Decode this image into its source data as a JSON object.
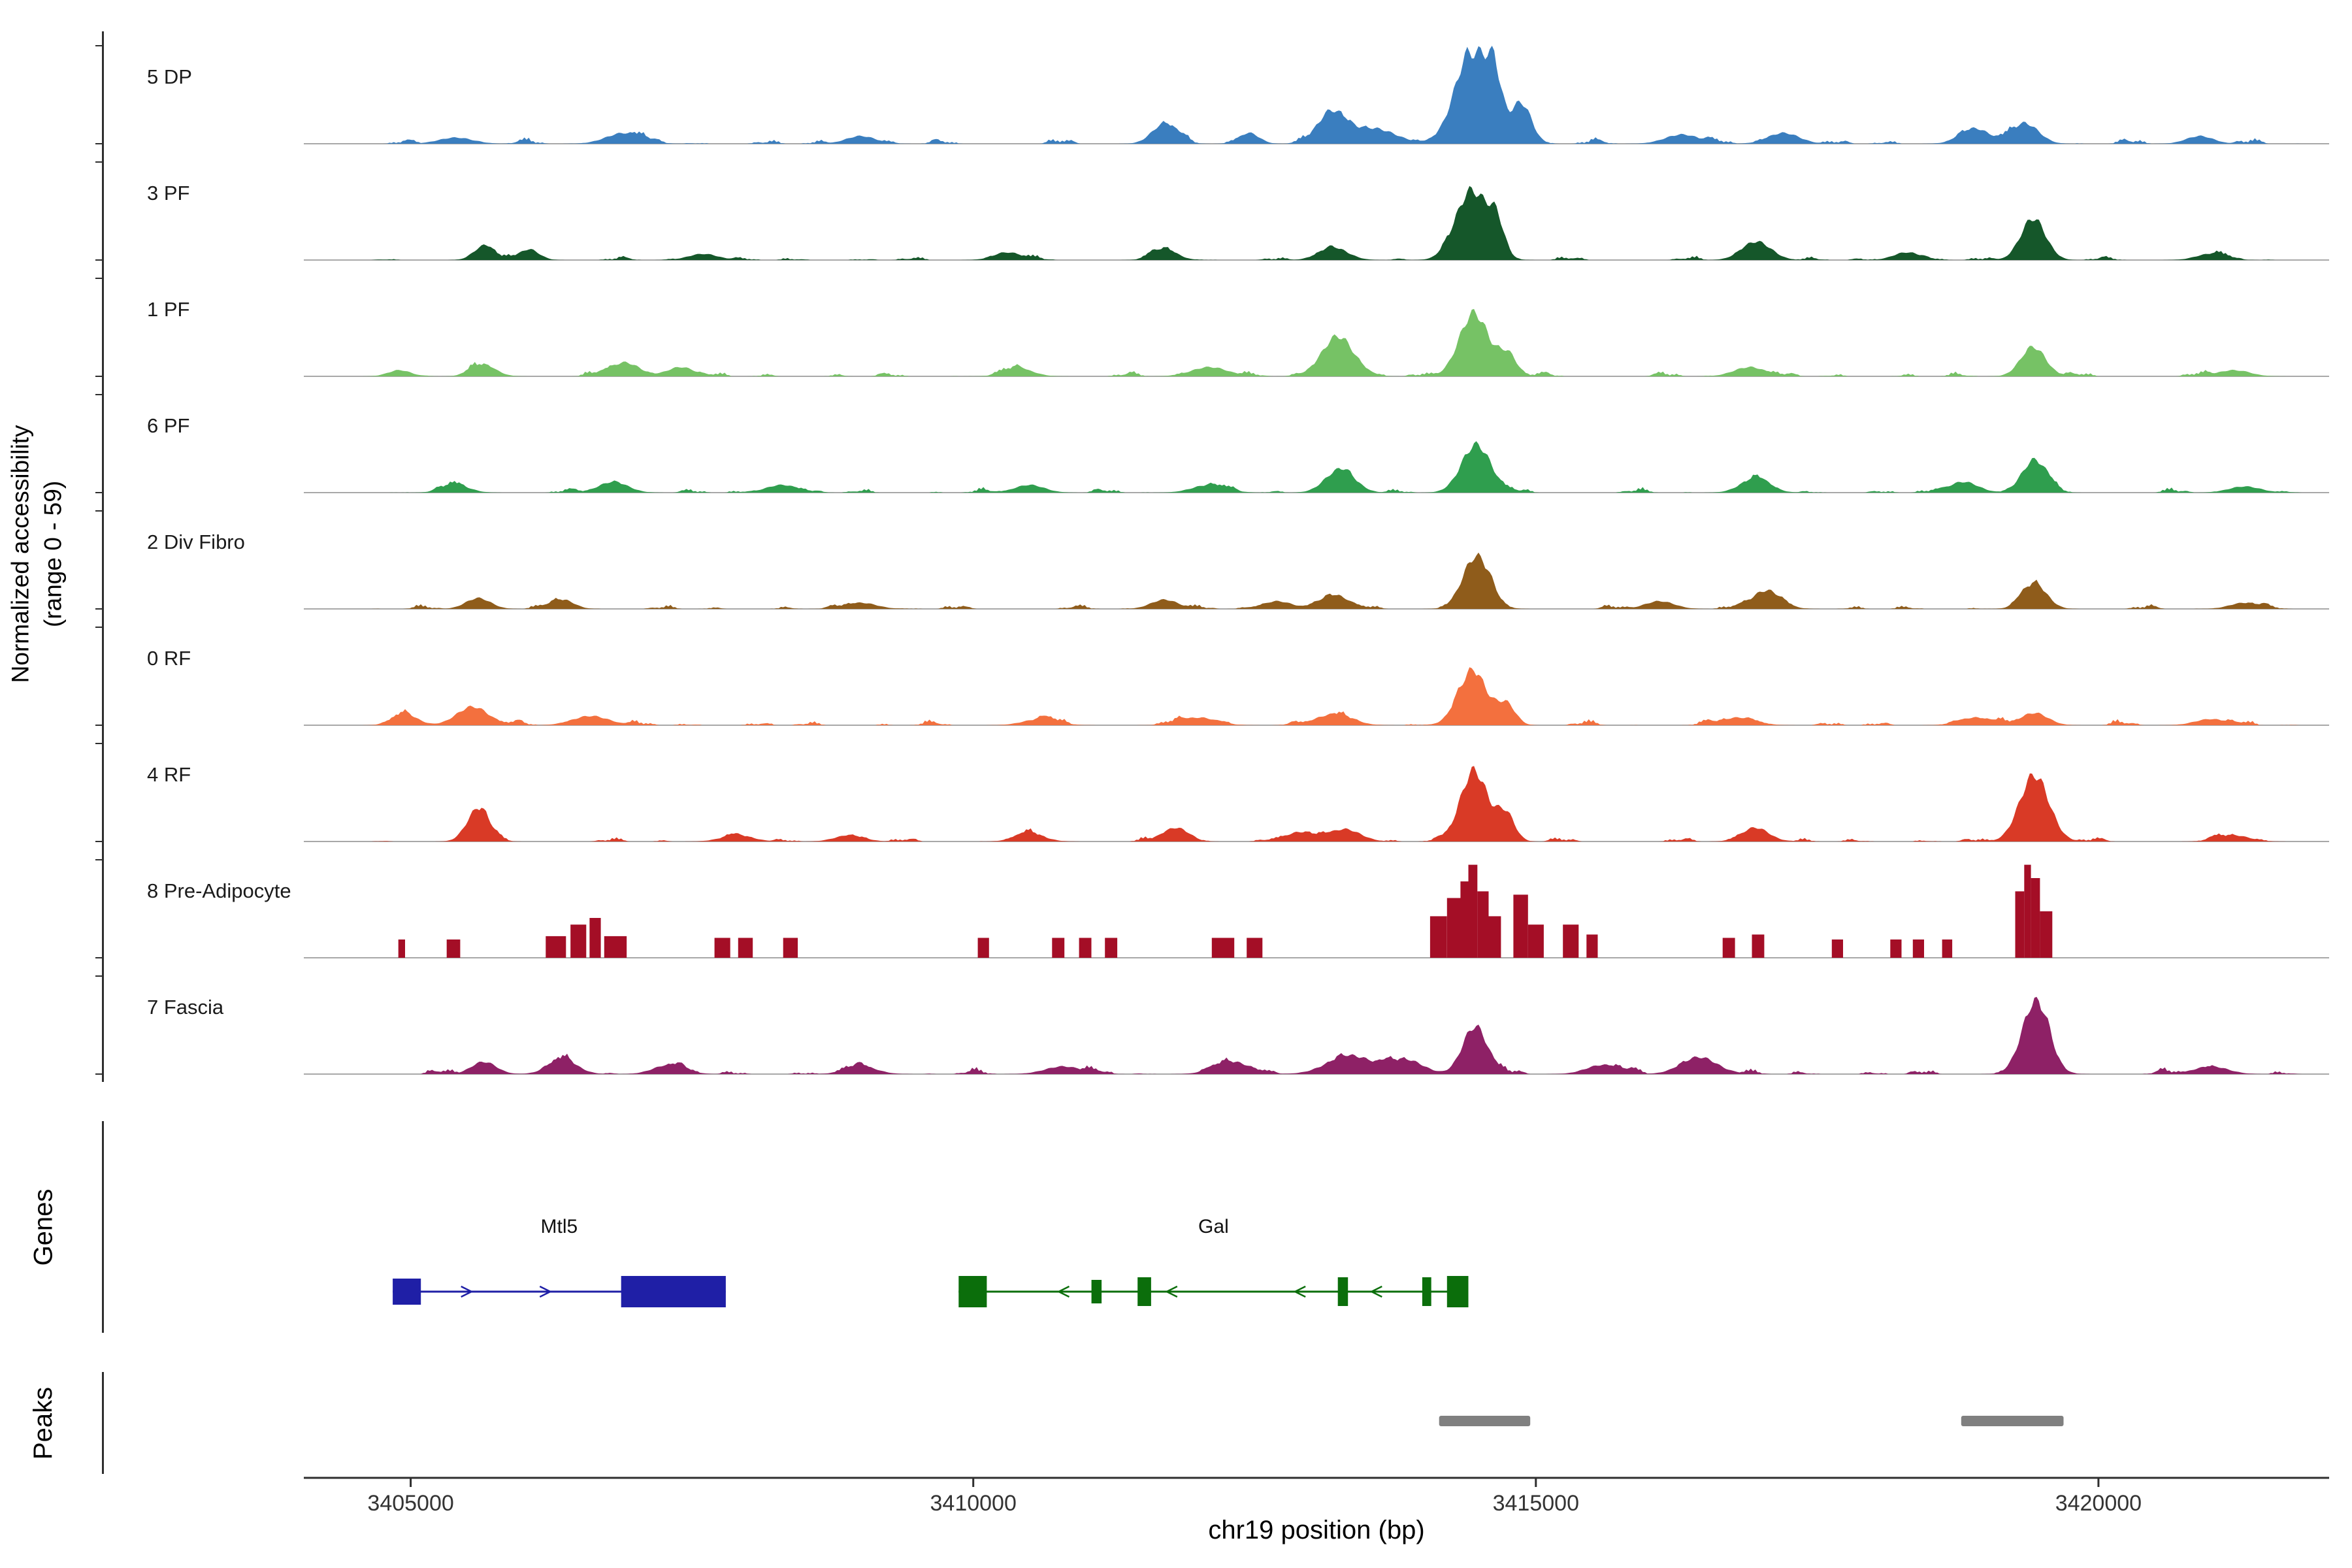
{
  "y_axis": {
    "label_line1": "Normalized accessibility",
    "label_line2": "(range 0 - 59)"
  },
  "sections": {
    "genes_label": "Genes",
    "peaks_label": "Peaks"
  },
  "x_axis": {
    "title": "chr19 position (bp)",
    "ticks": [
      3405000,
      3410000,
      3415000,
      3420000
    ],
    "tick_labels": [
      "3405000",
      "3410000",
      "3415000",
      "3420000"
    ]
  },
  "chart_data": {
    "type": "area",
    "xlabel": "chr19 position (bp)",
    "ylabel": "Normalized accessibility (range 0 - 59)",
    "x_domain": [
      3404050,
      3422050
    ],
    "y_range": [
      0,
      59
    ],
    "baseline_color": "#a8a8a8",
    "axis_color": "#2e2e2e",
    "peak_color": "#808080",
    "tracks": [
      {
        "label": "5 DP",
        "color": "#3a7ebf",
        "noise": 3.2,
        "peaks": [
          [
            3414430,
            150,
            59
          ],
          [
            3414620,
            70,
            34
          ],
          [
            3414870,
            90,
            26
          ],
          [
            3413180,
            120,
            20
          ],
          [
            3413550,
            200,
            10
          ],
          [
            3411700,
            110,
            13
          ],
          [
            3412450,
            90,
            7
          ],
          [
            3406900,
            160,
            7
          ],
          [
            3405400,
            150,
            4
          ],
          [
            3409000,
            130,
            5
          ],
          [
            3418900,
            130,
            10
          ],
          [
            3419350,
            120,
            13
          ],
          [
            3420900,
            120,
            5
          ],
          [
            3416300,
            150,
            6
          ],
          [
            3417200,
            140,
            7
          ]
        ]
      },
      {
        "label": "3 PF",
        "color": "#15572a",
        "noise": 2.2,
        "peaks": [
          [
            3414430,
            140,
            45
          ],
          [
            3414650,
            70,
            20
          ],
          [
            3419420,
            110,
            27
          ],
          [
            3416960,
            130,
            12
          ],
          [
            3405650,
            90,
            9
          ],
          [
            3406050,
            90,
            7
          ],
          [
            3413200,
            130,
            8
          ],
          [
            3411700,
            110,
            7
          ],
          [
            3410300,
            120,
            5
          ],
          [
            3418300,
            120,
            5
          ],
          [
            3407600,
            130,
            4
          ],
          [
            3421000,
            130,
            4
          ]
        ]
      },
      {
        "label": "1 PF",
        "color": "#76c265",
        "noise": 2.8,
        "peaks": [
          [
            3414450,
            130,
            41
          ],
          [
            3414750,
            80,
            14
          ],
          [
            3413240,
            140,
            26
          ],
          [
            3419420,
            110,
            19
          ],
          [
            3406900,
            130,
            9
          ],
          [
            3405650,
            110,
            7
          ],
          [
            3407400,
            120,
            6
          ],
          [
            3412100,
            160,
            6
          ],
          [
            3416900,
            140,
            6
          ],
          [
            3410400,
            130,
            5
          ],
          [
            3421200,
            140,
            4
          ],
          [
            3404900,
            100,
            4
          ]
        ]
      },
      {
        "label": "6 PF",
        "color": "#2f9e4e",
        "noise": 2.6,
        "peaks": [
          [
            3414470,
            130,
            31
          ],
          [
            3413260,
            130,
            15
          ],
          [
            3419430,
            110,
            21
          ],
          [
            3416950,
            130,
            9
          ],
          [
            3406800,
            130,
            7
          ],
          [
            3405400,
            120,
            5
          ],
          [
            3408300,
            140,
            5
          ],
          [
            3410500,
            130,
            5
          ],
          [
            3412100,
            150,
            5
          ],
          [
            3418800,
            130,
            7
          ],
          [
            3421300,
            140,
            4
          ]
        ]
      },
      {
        "label": "2 Div Fibro",
        "color": "#8f5c1b",
        "noise": 2.4,
        "peaks": [
          [
            3414470,
            120,
            34
          ],
          [
            3417050,
            130,
            12
          ],
          [
            3419430,
            110,
            16
          ],
          [
            3413210,
            130,
            9
          ],
          [
            3405600,
            110,
            7
          ],
          [
            3406350,
            100,
            6
          ],
          [
            3411700,
            120,
            6
          ],
          [
            3412700,
            130,
            5
          ],
          [
            3409000,
            140,
            4
          ],
          [
            3421300,
            130,
            4
          ],
          [
            3416100,
            130,
            5
          ]
        ]
      },
      {
        "label": "0 RF",
        "color": "#f3703e",
        "noise": 3.0,
        "peaks": [
          [
            3414440,
            130,
            34
          ],
          [
            3414740,
            80,
            13
          ],
          [
            3405550,
            140,
            12
          ],
          [
            3404950,
            110,
            7
          ],
          [
            3406600,
            160,
            6
          ],
          [
            3419430,
            120,
            8
          ],
          [
            3413200,
            160,
            7
          ],
          [
            3412000,
            160,
            5
          ],
          [
            3410600,
            150,
            4
          ],
          [
            3416800,
            150,
            5
          ],
          [
            3418900,
            140,
            5
          ],
          [
            3421000,
            140,
            4
          ]
        ]
      },
      {
        "label": "4 RF",
        "color": "#d93a26",
        "noise": 2.4,
        "peaks": [
          [
            3414450,
            120,
            46
          ],
          [
            3414730,
            80,
            18
          ],
          [
            3419430,
            130,
            43
          ],
          [
            3405600,
            100,
            21
          ],
          [
            3411800,
            110,
            9
          ],
          [
            3416950,
            120,
            9
          ],
          [
            3413300,
            140,
            8
          ],
          [
            3410500,
            130,
            5
          ],
          [
            3407900,
            140,
            4
          ],
          [
            3412900,
            130,
            6
          ],
          [
            3421200,
            140,
            4
          ],
          [
            3408900,
            130,
            4
          ]
        ]
      },
      {
        "label": "8 Pre-Adipocyte",
        "color": "#a40e26",
        "blocks": [
          [
            3404890,
            60,
            11
          ],
          [
            3405320,
            120,
            11
          ],
          [
            3406200,
            180,
            13
          ],
          [
            3406420,
            140,
            20
          ],
          [
            3406590,
            100,
            24
          ],
          [
            3406720,
            200,
            13
          ],
          [
            3407700,
            140,
            12
          ],
          [
            3407910,
            130,
            12
          ],
          [
            3408310,
            130,
            12
          ],
          [
            3410040,
            100,
            12
          ],
          [
            3410700,
            110,
            12
          ],
          [
            3410940,
            110,
            12
          ],
          [
            3411170,
            110,
            12
          ],
          [
            3412120,
            200,
            12
          ],
          [
            3412430,
            140,
            12
          ],
          [
            3414060,
            150,
            25
          ],
          [
            3414210,
            120,
            36
          ],
          [
            3414330,
            90,
            46
          ],
          [
            3414400,
            80,
            56
          ],
          [
            3414480,
            100,
            40
          ],
          [
            3414580,
            110,
            25
          ],
          [
            3414800,
            130,
            38
          ],
          [
            3414930,
            140,
            20
          ],
          [
            3415240,
            140,
            20
          ],
          [
            3415450,
            100,
            14
          ],
          [
            3416660,
            110,
            12
          ],
          [
            3416920,
            110,
            14
          ],
          [
            3417630,
            100,
            11
          ],
          [
            3418150,
            100,
            11
          ],
          [
            3418350,
            100,
            11
          ],
          [
            3418610,
            90,
            11
          ],
          [
            3419260,
            80,
            40
          ],
          [
            3419340,
            60,
            56
          ],
          [
            3419400,
            80,
            48
          ],
          [
            3419480,
            110,
            28
          ]
        ]
      },
      {
        "label": "7 Fascia",
        "color": "#8e2166",
        "noise": 3.4,
        "peaks": [
          [
            3419440,
            120,
            46
          ],
          [
            3414460,
            110,
            31
          ],
          [
            3413350,
            200,
            12
          ],
          [
            3413850,
            150,
            9
          ],
          [
            3416450,
            160,
            11
          ],
          [
            3405650,
            110,
            8
          ],
          [
            3406350,
            130,
            9
          ],
          [
            3412300,
            160,
            8
          ],
          [
            3410800,
            160,
            5
          ],
          [
            3409000,
            140,
            5
          ],
          [
            3421000,
            150,
            5
          ],
          [
            3407300,
            140,
            6
          ],
          [
            3415600,
            150,
            6
          ]
        ]
      }
    ],
    "genes": [
      {
        "name": "Mtl5",
        "color": "#1f1fa6",
        "strand": "+",
        "start": 3404840,
        "end": 3407800,
        "exons": [
          [
            3404840,
            3405090,
            40
          ],
          [
            3406870,
            3407800,
            48
          ]
        ],
        "arrows": [
          3405500,
          3406200
        ]
      },
      {
        "name": "Gal",
        "color": "#0b6e0b",
        "strand": "-",
        "start": 3409870,
        "end": 3414400,
        "exons": [
          [
            3409870,
            3410120,
            48
          ],
          [
            3411050,
            3411140,
            36
          ],
          [
            3411460,
            3411580,
            44
          ],
          [
            3413240,
            3413330,
            44
          ],
          [
            3413990,
            3414070,
            44
          ],
          [
            3414210,
            3414400,
            48
          ]
        ],
        "arrows": [
          3410800,
          3411760,
          3412900,
          3413580
        ]
      }
    ],
    "peak_regions": [
      [
        3414140,
        3414950
      ],
      [
        3418780,
        3419690
      ]
    ]
  }
}
